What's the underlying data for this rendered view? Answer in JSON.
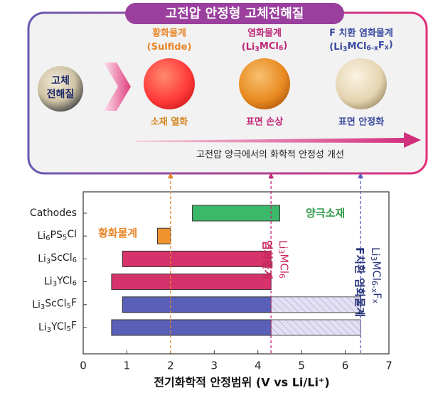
{
  "diagram": {
    "title": "고전압 안정형 고체전해질",
    "electrolyte": [
      "고체",
      "전해질"
    ],
    "columns": [
      {
        "name": "황화물계",
        "formula": "(Sulfide)",
        "result": "소재 열화",
        "color": "#e8862a",
        "result_color": "#d4861f"
      },
      {
        "name": "염화물계",
        "formula": "(Li3MCl6)",
        "result": "표면 손상",
        "color": "#c02a7a",
        "result_color": "#c02a7a"
      },
      {
        "name": "F 치환 염화물계",
        "formula": "(Li3MCl6-xFx)",
        "result": "표면 안정화",
        "color": "#3a4aa0",
        "result_color": "#3a4aa0"
      }
    ],
    "arrow_text": "고전압 양극에서의 화학적 안정성 개선"
  },
  "chart_data": {
    "type": "floating-bar",
    "categories": [
      "Cathodes",
      "Li6PS5Cl",
      "Li3ScCl6",
      "Li3YCl6",
      "Li3ScCl5F",
      "Li3YCl5F"
    ],
    "ranges": [
      {
        "start": 2.5,
        "end": 4.5,
        "color": "#3cb86a"
      },
      {
        "start": 1.7,
        "end": 2.0,
        "color": "#f0922e"
      },
      {
        "start": 0.9,
        "end": 4.3,
        "color": "#d6336c"
      },
      {
        "start": 0.65,
        "end": 4.3,
        "color": "#d6336c"
      },
      {
        "start": 0.9,
        "end": 4.3,
        "color": "#5a5fb8"
      },
      {
        "start": 0.65,
        "end": 4.3,
        "color": "#5a5fb8"
      }
    ],
    "extensions": [
      null,
      null,
      null,
      null,
      {
        "start": 4.3,
        "end": 6.35
      },
      {
        "start": 4.3,
        "end": 6.35
      }
    ],
    "extension_color": "#e4e0f4",
    "reference_lines": [
      {
        "value": 2,
        "color": "#e8862a"
      },
      {
        "value": 4.3,
        "color": "#c02a7a"
      },
      {
        "value": 6.35,
        "color": "#5a5fb8"
      }
    ],
    "annotations": [
      {
        "lines": [
          "양극소재"
        ],
        "color": "#2e9a4a"
      },
      {
        "lines": [
          "황화물계"
        ],
        "color": "#e8862a"
      },
      {
        "lines": [
          "Li3MCl6",
          "염화물계"
        ],
        "color": "#c8285a"
      },
      {
        "lines": [
          "Li3MCl6-xFx",
          "F치환 염화물계"
        ],
        "color": "#26327a"
      }
    ],
    "xlabel": "전기화학적 안정범위  (V vs Li/Li⁺)",
    "xlim": [
      0,
      7
    ],
    "xticks": [
      0,
      1,
      2,
      3,
      4,
      5,
      6,
      7
    ]
  }
}
